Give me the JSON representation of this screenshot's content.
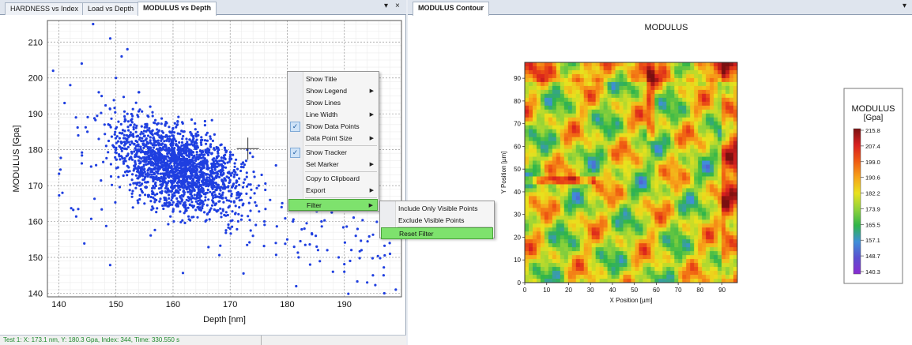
{
  "left_panel": {
    "tabs": [
      {
        "label": "HARDNESS vs Index"
      },
      {
        "label": "Load vs Depth"
      },
      {
        "label": "MODULUS vs Depth"
      }
    ],
    "pin_icon": "▾",
    "close_icon": "×",
    "status_text": "Test 1: X: 173.1 nm, Y: 180.3 Gpa, Index: 344, Time: 330.550 s"
  },
  "right_panel": {
    "tabs": [
      {
        "label": "MODULUS Contour"
      }
    ],
    "pin_icon": "▾",
    "close_icon": "×"
  },
  "context_menu": {
    "items": [
      {
        "label": "Show Title",
        "checked": false,
        "submenu": false
      },
      {
        "label": "Show Legend",
        "checked": false,
        "submenu": true
      },
      {
        "label": "Show Lines",
        "checked": false,
        "submenu": false
      },
      {
        "label": "Line Width",
        "checked": false,
        "submenu": true
      },
      {
        "label": "Show Data Points",
        "checked": true,
        "submenu": false
      },
      {
        "label": "Data Point Size",
        "checked": false,
        "submenu": true
      },
      {
        "label": "Show Tracker",
        "checked": true,
        "submenu": false
      },
      {
        "label": "Set Marker",
        "checked": false,
        "submenu": true
      },
      {
        "label": "Copy to Clipboard",
        "checked": false,
        "submenu": false
      },
      {
        "label": "Export",
        "checked": false,
        "submenu": true
      },
      {
        "label": "Filter",
        "checked": false,
        "submenu": true,
        "highlighted": true
      }
    ],
    "arrow_icon": "▶",
    "check_icon": "✓"
  },
  "filter_submenu": {
    "items": [
      {
        "label": "Include Only Visible Points"
      },
      {
        "label": "Exclude Visible Points"
      },
      {
        "label": "Reset Filter",
        "highlighted": true
      }
    ]
  },
  "chart_data": [
    {
      "type": "scatter",
      "title": "",
      "xlabel": "Depth [nm]",
      "ylabel": "MODULUS [Gpa]",
      "xlim": [
        138,
        200
      ],
      "ylim": [
        139,
        216
      ],
      "xticks": [
        140,
        150,
        160,
        170,
        180,
        190
      ],
      "yticks": [
        140,
        150,
        160,
        170,
        180,
        190,
        200,
        210
      ],
      "grid": true,
      "point_color": "#1f3fe0",
      "series": [
        {
          "name": "",
          "description_points": [
            [
              139,
              202
            ],
            [
              141,
              193
            ],
            [
              142,
              198
            ],
            [
              144,
              204
            ],
            [
              146,
              215
            ],
            [
              147,
              196
            ],
            [
              149,
              211
            ],
            [
              151,
              206
            ],
            [
              152,
              208
            ],
            [
              143,
              189
            ],
            [
              145,
              185
            ],
            [
              147,
              183
            ],
            [
              148,
              187
            ],
            [
              150,
              180
            ],
            [
              152,
              190
            ],
            [
              153,
              184
            ],
            [
              154,
              178
            ],
            [
              156,
              182
            ],
            [
              157,
              176
            ],
            [
              158,
              180
            ],
            [
              159,
              174
            ],
            [
              160,
              178
            ],
            [
              161,
              172
            ],
            [
              162,
              176
            ],
            [
              163,
              174
            ],
            [
              164,
              170
            ],
            [
              165,
              176
            ],
            [
              166,
              168
            ],
            [
              167,
              172
            ],
            [
              168,
              174
            ],
            [
              170,
              178
            ],
            [
              172,
              176
            ],
            [
              173,
              180
            ],
            [
              175,
              170
            ],
            [
              177,
              166
            ],
            [
              179,
              164
            ],
            [
              181,
              160
            ],
            [
              183,
              158
            ],
            [
              185,
              156
            ],
            [
              187,
              152
            ],
            [
              189,
              150
            ],
            [
              190,
              146
            ],
            [
              191,
              149
            ],
            [
              193,
              152
            ],
            [
              195,
              145
            ],
            [
              197,
              140
            ],
            [
              198,
              151
            ],
            [
              199,
              141
            ],
            [
              155,
              165
            ],
            [
              158,
              168
            ],
            [
              162,
              164
            ],
            [
              166,
              162
            ],
            [
              170,
              158
            ],
            [
              174,
              156
            ],
            [
              178,
              154
            ],
            [
              182,
              150
            ],
            [
              176,
              160
            ],
            [
              180,
              155
            ],
            [
              184,
              148
            ],
            [
              188,
              146
            ],
            [
              160,
              186
            ],
            [
              164,
              184
            ],
            [
              168,
              180
            ],
            [
              154,
              196
            ],
            [
              150,
              200
            ],
            [
              156,
              192
            ],
            [
              172,
              166
            ],
            [
              186,
              160
            ],
            [
              192,
              156
            ],
            [
              194,
              143
            ]
          ]
        }
      ],
      "tracker": {
        "x": 173.1,
        "y": 180.3
      }
    },
    {
      "type": "heatmap",
      "title": "MODULUS",
      "xlabel": "X Position [µm]",
      "ylabel": "Y Position [µm]",
      "xlim": [
        0,
        97
      ],
      "ylim": [
        0,
        97
      ],
      "xticks": [
        0,
        10,
        20,
        30,
        40,
        50,
        60,
        70,
        80,
        90
      ],
      "yticks": [
        0,
        10,
        20,
        30,
        40,
        50,
        60,
        70,
        80,
        90
      ],
      "colorbar": {
        "title": "MODULUS",
        "unit": "[Gpa]",
        "ticks": [
          "215.8",
          "207.4",
          "199.0",
          "190.6",
          "182.2",
          "173.9",
          "165.5",
          "157.1",
          "148.7",
          "140.3"
        ],
        "colors": [
          "#7a1010",
          "#d81f1f",
          "#ef5a12",
          "#f7a319",
          "#e9e21d",
          "#8fd23a",
          "#2fb54a",
          "#3f8fd9",
          "#5a4fd0",
          "#8a2bd1"
        ]
      }
    }
  ]
}
